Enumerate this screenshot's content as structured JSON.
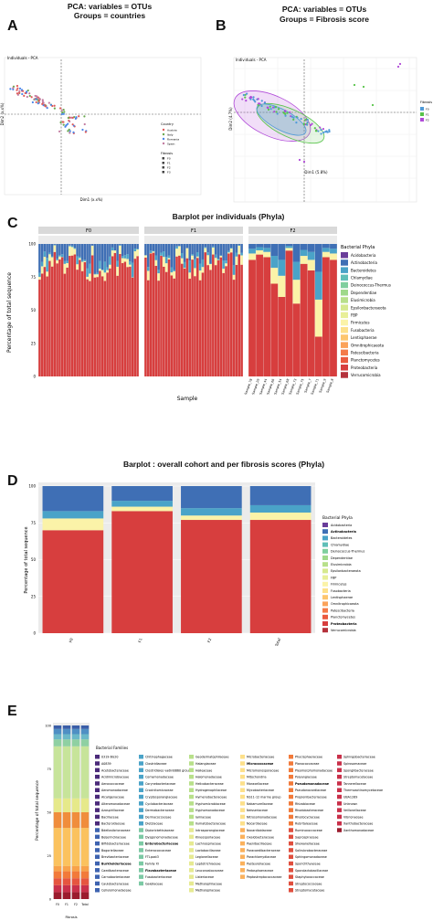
{
  "headings": {
    "pca_a_line1": "PCA: variables = OTUs",
    "pca_a_line2": "Groups = countries",
    "pca_b_line1": "PCA: variables = OTUs",
    "pca_b_line2": "Groups = Fibrosis score",
    "barplot_c": "Barplot per individuals (Phyla)",
    "barplot_d": "Barplot : overall cohort and per fibrosis scores (Phyla)"
  },
  "panel_letters": {
    "a": "A",
    "b": "B",
    "c": "C",
    "d": "D",
    "e": "E"
  },
  "colors": {
    "Acidobacteria": "#6a3d9a",
    "Actinobacteria": "#3f6fb5",
    "Bacteroidetes": "#4aa3c8",
    "Chlamydiae": "#5fbfb8",
    "Deinococcus-Thermus": "#7fcf9e",
    "Dependentiae": "#9fd98a",
    "Elusimicrobia": "#b8e08a",
    "Epsilonbacteraeota": "#d6e98e",
    "FBP": "#e8ef98",
    "Firmicutes": "#fbf3a8",
    "Fusobacteria": "#fde08a",
    "Lentisphaerae": "#fdc56e",
    "Omnitrophicaeota": "#fba25a",
    "Patescibacteria": "#f47a48",
    "Planctomycetes": "#ea5a3e",
    "Proteobacteria": "#d73e3e",
    "Verrucomicrobia": "#b5323c"
  },
  "chart_data": [
    {
      "panel": "A",
      "type": "scatter",
      "title": "Individuals - PCA",
      "xlabel": "Dim1 (x.x%)",
      "ylabel": "Dim2 (x.x%)",
      "legend_country_title": "Country",
      "legend_country": [
        "Austria",
        "Italy",
        "Romania",
        "Spain"
      ],
      "legend_country_colors": [
        "#e05a5a",
        "#6aa84f",
        "#4a86e8",
        "#c27ba0"
      ],
      "legend_fibrosis_title": "Fibrosis",
      "legend_fibrosis": [
        "F0",
        "F1",
        "F2",
        "F3"
      ],
      "legend_placement": "right",
      "grid": true
    },
    {
      "panel": "B",
      "type": "scatter",
      "title": "Individuals - PCA",
      "xlabel": "Dim1 (5.8%)",
      "ylabel": "Dim2 (4.7%)",
      "legend_title": "Fibrosis",
      "legend": [
        "F0",
        "F1",
        "F2"
      ],
      "legend_colors": [
        "#4f9ad8",
        "#58c44a",
        "#b04ad8"
      ],
      "legend_placement": "right",
      "grid": true
    },
    {
      "panel": "C",
      "type": "bar",
      "stacked": true,
      "xlabel": "Sample",
      "ylabel": "Percentage of total sequence",
      "legend_title": "Bacterial Phyla",
      "legend": [
        "Acidobacteria",
        "Actinobacteria",
        "Bacteroidetes",
        "Chlamydiae",
        "Deinococcus-Thermus",
        "Dependentiae",
        "Elusimicrobia",
        "Epsilonbacteraeota",
        "FBP",
        "Firmicutes",
        "Fusobacteria",
        "Lentisphaerae",
        "Omnitrophicaeota",
        "Patescibacteria",
        "Planctomycetes",
        "Proteobacteria",
        "Verrucomicrobia"
      ],
      "legend_placement": "right",
      "ylim": [
        0,
        100
      ],
      "yticks": [
        0,
        25,
        50,
        75,
        100
      ],
      "facets": [
        "F0",
        "F1",
        "F2"
      ],
      "facet_f2_samples": [
        "Sample_78",
        "Sample_29",
        "Sample_44",
        "Sample_66",
        "Sample_54",
        "Sample_68",
        "Sample_73",
        "Sample_75",
        "Sample_7",
        "Sample_71",
        "Sample_9",
        "Sample_8"
      ]
    },
    {
      "panel": "D",
      "type": "bar",
      "stacked": true,
      "ylabel": "Percentage of total sequence",
      "categories": [
        "F0",
        "F1",
        "F2",
        "Total"
      ],
      "ylim": [
        0,
        100
      ],
      "yticks": [
        0,
        25,
        50,
        75,
        100
      ],
      "legend_title": "Bacterial Phyla",
      "legend": [
        "Acidobacteria",
        "Actinobacteria",
        "Bacteroidetes",
        "Chlamydiae",
        "Deinococcus-Thermus",
        "Dependentiae",
        "Elusimicrobia",
        "Epsilonbacteraeota",
        "FBP",
        "Firmicutes",
        "Fusobacteria",
        "Lentisphaerae",
        "Omnitrophicaeota",
        "Patescibacteria",
        "Planctomycetes",
        "Proteobacteria",
        "Verrucomicrobia"
      ],
      "legend_placement": "right",
      "series": [
        {
          "name": "Proteobacteria",
          "values": [
            70,
            83,
            77,
            77
          ]
        },
        {
          "name": "Firmicutes",
          "values": [
            8,
            3,
            3,
            5
          ]
        },
        {
          "name": "Bacteroidetes",
          "values": [
            5,
            4,
            5,
            5
          ]
        },
        {
          "name": "Actinobacteria",
          "values": [
            17,
            10,
            15,
            13
          ]
        }
      ]
    },
    {
      "panel": "E",
      "type": "bar",
      "stacked": true,
      "xlabel": "Fibrosis",
      "ylabel": "Percentage of total sequence",
      "categories": [
        "F0",
        "F1",
        "F2",
        "Total"
      ],
      "ylim": [
        0,
        100
      ],
      "yticks": [
        0,
        25,
        50,
        75,
        100
      ],
      "legend_title": "Bacterial Families",
      "legend_placement": "right"
    }
  ],
  "families": [
    [
      "0319-6G20",
      "A0839",
      "Acetobacteraceae",
      "Acidimicrobiaceae",
      "Aerococcaceae",
      "Aeromonadaceae",
      "Alcaligenaceae",
      "Alteromonadaceae",
      "Azospirillaceae",
      "Bacillaceae",
      "Bacteroidaceae",
      "Bdellovibrionaceae",
      "Beijerinckiaceae",
      "Bifidobacteriaceae",
      "Bogoriellaceae",
      "Brevibacteriaceae",
      "Burkholderiaceae",
      "Caedibacteraceae",
      "Carnobacteriaceae",
      "Caulobacteraceae",
      "Cellulomonadaceae"
    ],
    [
      "Chitinophagaceae",
      "Clostridiaceae",
      "Clostridiales vadinBB60 group",
      "Comamonadaceae",
      "Corynebacteriaceae",
      "Crocinitomicaceae",
      "Cryptosporangiaceae",
      "Cyclobacteriaceae",
      "Dermabacteraceae",
      "Dermacoccaceae",
      "Dietziaceae",
      "Diplorickettsiaceae",
      "Dysgonomonadaceae",
      "Enterobacteriaceae",
      "Enterococcaceae",
      "FTLpost3",
      "Family XI",
      "Flavobacteriaceae",
      "Fusobacteriaceae",
      "Gaiellaceae"
    ],
    [
      "Geodermatophilaceae",
      "Halangiaceae",
      "Halieaceae",
      "Halomonadaceae",
      "Helicobacteraceae",
      "Hydrogenophilaceae",
      "Hymenobacteraceae",
      "Hyphomicrobiaceae",
      "Hyphomonadaceae",
      "Iamiaceae",
      "Ilumatobacteraceae",
      "Intrasporangiaceae",
      "Kineosporiaceae",
      "Lachnospiraceae",
      "Lactobacillaceae",
      "Legionellaceae",
      "Leptotrichiaceae",
      "Leuconostocaceae",
      "Listeriaceae",
      "Methylophilaceae",
      "Methylopilaceae"
    ],
    [
      "Microbacteriaceae",
      "Micrococcaceae",
      "Micromonosporaceae",
      "Mitochondria",
      "Moraxellaceae",
      "Mycobacteriaceae",
      "NS11-12 marine group",
      "Nakamurellaceae",
      "Neisseriaceae",
      "Nitrosomonadaceae",
      "Nocardiaceae",
      "Nocardioidaceae",
      "Oxalobacteraceae",
      "Paenibacillaceae",
      "Paracaedibacteraceae",
      "Parachlamydiaceae",
      "Pasteurellaceae",
      "Pedosphaeraceae",
      "Peptostreptococcaceae"
    ],
    [
      "Phycisphaeraceae",
      "Planococcaceae",
      "Pleomorphomonadaceae",
      "Polyangiaceae",
      "Pseudomonadaceae",
      "Pseudonocardiaceae",
      "Propionibacteriaceae",
      "Rhizobiaceae",
      "Rhodobacteraceae",
      "Rhodocyclaceae",
      "Rubritaleaceae",
      "Ruminococcaceae",
      "Saprospiraceae",
      "Shewanellaceae",
      "Solirubrobacteraceae",
      "Sphingomonadaceae",
      "Sporichthyaceae",
      "Sporolactobacillaceae",
      "Staphylococcaceae",
      "Streptococcaceae",
      "Streptomycetaceae"
    ],
    [
      "Sphingobacteriaceae",
      "Spirosomaceae",
      "Spongiibacteraceae",
      "Streptomycetaceae",
      "Tannerellaceae",
      "Thermoactinomycetaceae",
      "UBA1269",
      "Unknown",
      "Veillonellaceae",
      "Vibrionaceae",
      "Xanthobacteraceae",
      "Xanthomonadaceae"
    ]
  ],
  "families_bold": [
    "Burkholderiaceae",
    "Enterobacteriaceae",
    "Flavobacteriaceae",
    "Micrococcaceae",
    "Pseudomonadaceae"
  ]
}
